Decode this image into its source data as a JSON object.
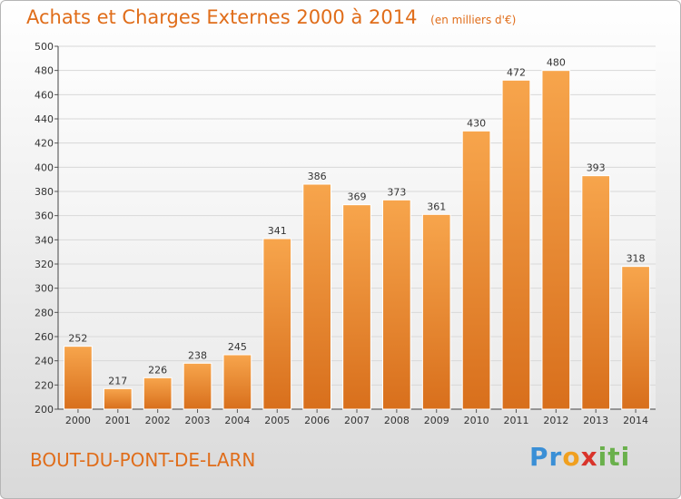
{
  "header": {
    "title": "Achats et Charges Externes 2000 à 2014",
    "unit": "(en milliers d'€)"
  },
  "footer": {
    "commune": "BOUT-DU-PONT-DE-LARN",
    "logo_text": "Proxiti"
  },
  "colors": {
    "accent": "#e06d1a",
    "bar_light": "#f7a54c",
    "bar_dark": "#d86f1c",
    "grid": "#d8d8d8"
  },
  "chart_data": {
    "type": "bar",
    "title": "Achats et Charges Externes 2000 à 2014",
    "subtitle": "(en milliers d'€)",
    "categories": [
      "2000",
      "2001",
      "2002",
      "2003",
      "2004",
      "2005",
      "2006",
      "2007",
      "2008",
      "2009",
      "2010",
      "2011",
      "2012",
      "2013",
      "2014"
    ],
    "values": [
      252,
      217,
      226,
      238,
      245,
      341,
      386,
      369,
      373,
      361,
      430,
      472,
      480,
      393,
      318
    ],
    "ylim": [
      200,
      500
    ],
    "ytick_step": 20,
    "grid": true,
    "data_labels": true
  }
}
